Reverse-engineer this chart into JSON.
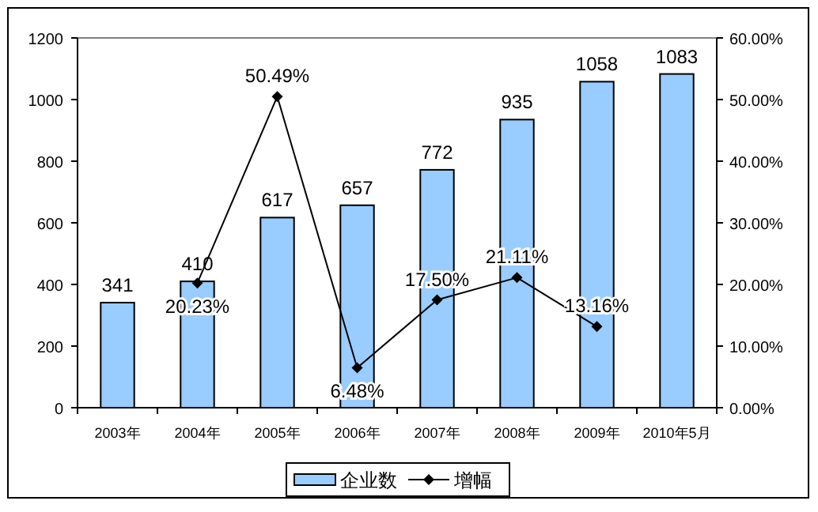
{
  "chart_data": {
    "type": "bar",
    "categories": [
      "2003年",
      "2004年",
      "2005年",
      "2006年",
      "2007年",
      "2008年",
      "2009年",
      "2010年5月"
    ],
    "series": [
      {
        "name": "企业数",
        "color": "#99ccff",
        "values": [
          341,
          410,
          617,
          657,
          772,
          935,
          1058,
          1083
        ],
        "value_labels": [
          "341",
          "410",
          "617",
          "657",
          "772",
          "935",
          "1058",
          "1083"
        ]
      },
      {
        "name": "增幅",
        "type": "line",
        "axis": "y2",
        "color": "#000000",
        "marker": "diamond",
        "values": [
          null,
          20.23,
          50.49,
          6.48,
          17.5,
          21.11,
          13.16,
          null
        ],
        "value_labels": [
          null,
          "20.23%",
          "50.49%",
          "6.48%",
          "17.50%",
          "21.11%",
          "13.16%",
          null
        ]
      }
    ],
    "ylim": [
      0,
      1200
    ],
    "yticks": [
      0,
      200,
      400,
      600,
      800,
      1000,
      1200
    ],
    "y2lim": [
      0,
      60
    ],
    "y2ticks": [
      {
        "value": 0,
        "label": "0.00%"
      },
      {
        "value": 10,
        "label": "10.00%"
      },
      {
        "value": 20,
        "label": "20.00%"
      },
      {
        "value": 30,
        "label": "30.00%"
      },
      {
        "value": 40,
        "label": "40.00%"
      },
      {
        "value": 50,
        "label": "50.00%"
      },
      {
        "value": 60,
        "label": "60.00%"
      }
    ],
    "grid": false,
    "legend": "bottom"
  }
}
